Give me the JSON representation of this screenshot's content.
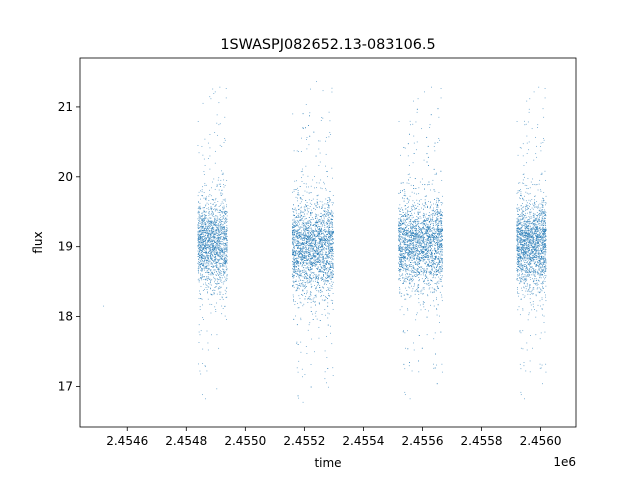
{
  "chart_data": {
    "type": "scatter",
    "title": "1SWASPJ082652.13-083106.5",
    "xlabel": "time",
    "ylabel": "flux",
    "x_offset_label": "1e6",
    "xlim": [
      2.45444,
      2.45612
    ],
    "ylim": [
      16.42,
      21.7
    ],
    "x_ticks": [
      2.4546,
      2.4548,
      2.455,
      2.4552,
      2.4554,
      2.4556,
      2.4558,
      2.456
    ],
    "x_tick_labels": [
      "2.4546",
      "2.4548",
      "2.4550",
      "2.4552",
      "2.4554",
      "2.4556",
      "2.4558",
      "2.4560"
    ],
    "y_ticks": [
      17,
      18,
      19,
      20,
      21
    ],
    "y_tick_labels": [
      "17",
      "18",
      "19",
      "20",
      "21"
    ],
    "grid": false,
    "marker_color": "#1f77b4",
    "seasons": [
      {
        "x_start": 2.45484,
        "x_end": 2.45494,
        "y_center": 19.05,
        "y_spread": 0.55,
        "n": 1800
      },
      {
        "x_start": 2.45516,
        "x_end": 2.4553,
        "y_center": 19.0,
        "y_spread": 0.6,
        "n": 2600
      },
      {
        "x_start": 2.45552,
        "x_end": 2.45567,
        "y_center": 19.05,
        "y_spread": 0.55,
        "n": 2600
      },
      {
        "x_start": 2.45592,
        "x_end": 2.45602,
        "y_center": 19.05,
        "y_spread": 0.55,
        "n": 2000
      }
    ],
    "isolated_points": [
      {
        "x": 2.45452,
        "y": 18.15
      }
    ]
  }
}
